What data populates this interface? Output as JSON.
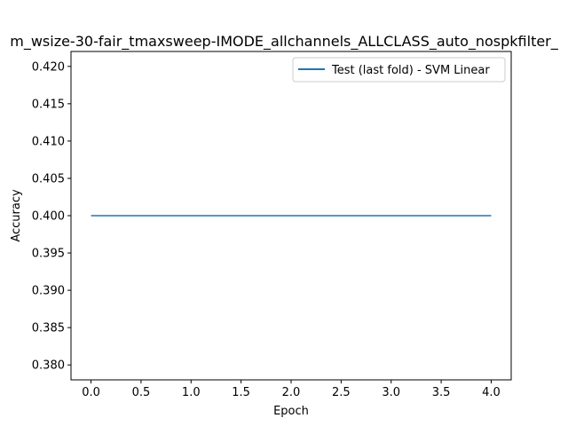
{
  "chart_data": {
    "type": "line",
    "title": "m_wsize-30-fair_tmaxsweep-IMODE_allchannels_ALLCLASS_auto_nospkfilter_",
    "xlabel": "Epoch",
    "ylabel": "Accuracy",
    "xlim": [
      -0.2,
      4.2
    ],
    "ylim": [
      0.378,
      0.422
    ],
    "x_ticks": [
      0.0,
      0.5,
      1.0,
      1.5,
      2.0,
      2.5,
      3.0,
      3.5,
      4.0
    ],
    "x_tick_labels": [
      "0.0",
      "0.5",
      "1.0",
      "1.5",
      "2.0",
      "2.5",
      "3.0",
      "3.5",
      "4.0"
    ],
    "y_ticks": [
      0.38,
      0.385,
      0.39,
      0.395,
      0.4,
      0.405,
      0.41,
      0.415,
      0.42
    ],
    "y_tick_labels": [
      "0.380",
      "0.385",
      "0.390",
      "0.395",
      "0.400",
      "0.405",
      "0.410",
      "0.415",
      "0.420"
    ],
    "grid": false,
    "legend_position": "top-right",
    "series": [
      {
        "name": "Test (last fold) - SVM Linear",
        "color": "#1f77b4",
        "x": [
          0,
          1,
          2,
          3,
          4
        ],
        "y": [
          0.4,
          0.4,
          0.4,
          0.4,
          0.4
        ]
      }
    ]
  }
}
